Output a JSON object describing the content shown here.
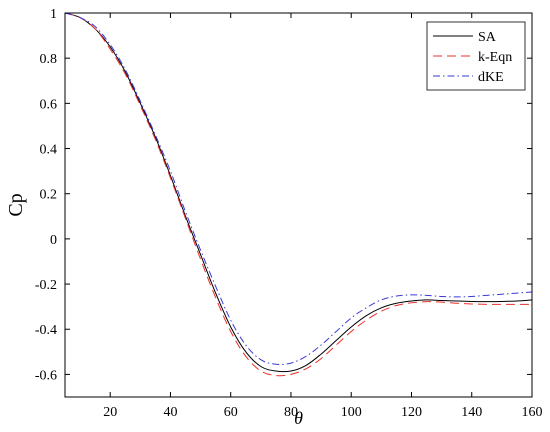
{
  "chart_data": {
    "type": "line",
    "xlabel": "θ",
    "ylabel": "Cp",
    "xlim": [
      5,
      160
    ],
    "ylim": [
      -0.7,
      1.0
    ],
    "xticks": [
      20,
      40,
      60,
      80,
      100,
      120,
      140,
      160
    ],
    "yticks": [
      -0.6,
      -0.4,
      -0.2,
      0,
      0.2,
      0.4,
      0.6,
      0.8,
      1
    ],
    "ytick_labels": [
      "-0.6",
      "-0.4",
      "-0.2",
      "0",
      "0.2",
      "0.4",
      "0.6",
      "0.8",
      "1"
    ],
    "grid": false,
    "legend_position": "top-right",
    "x": [
      5,
      10,
      15,
      20,
      25,
      30,
      35,
      40,
      45,
      50,
      55,
      60,
      65,
      70,
      75,
      80,
      85,
      90,
      95,
      100,
      105,
      110,
      115,
      120,
      125,
      130,
      135,
      140,
      145,
      150,
      155,
      160
    ],
    "series": [
      {
        "name": "SA",
        "color": "#000000",
        "dash": "solid",
        "values": [
          1.0,
          0.98,
          0.93,
          0.85,
          0.74,
          0.6,
          0.45,
          0.28,
          0.1,
          -0.07,
          -0.24,
          -0.39,
          -0.5,
          -0.565,
          -0.585,
          -0.585,
          -0.56,
          -0.51,
          -0.45,
          -0.39,
          -0.34,
          -0.305,
          -0.285,
          -0.275,
          -0.27,
          -0.273,
          -0.275,
          -0.277,
          -0.278,
          -0.277,
          -0.275,
          -0.27
        ]
      },
      {
        "name": "k-Eqn",
        "color": "#e8302a",
        "dash": "dashed",
        "values": [
          1.0,
          0.98,
          0.93,
          0.84,
          0.73,
          0.59,
          0.44,
          0.27,
          0.09,
          -0.09,
          -0.26,
          -0.41,
          -0.52,
          -0.585,
          -0.605,
          -0.6,
          -0.575,
          -0.53,
          -0.47,
          -0.41,
          -0.36,
          -0.32,
          -0.295,
          -0.283,
          -0.278,
          -0.28,
          -0.285,
          -0.288,
          -0.29,
          -0.29,
          -0.29,
          -0.29
        ]
      },
      {
        "name": "dKE",
        "color": "#3a3ad8",
        "dash": "dashdot",
        "values": [
          1.0,
          0.98,
          0.94,
          0.86,
          0.75,
          0.61,
          0.46,
          0.3,
          0.12,
          -0.05,
          -0.21,
          -0.36,
          -0.47,
          -0.535,
          -0.555,
          -0.55,
          -0.52,
          -0.47,
          -0.41,
          -0.35,
          -0.305,
          -0.27,
          -0.253,
          -0.248,
          -0.25,
          -0.255,
          -0.257,
          -0.255,
          -0.25,
          -0.245,
          -0.24,
          -0.235
        ]
      }
    ]
  }
}
